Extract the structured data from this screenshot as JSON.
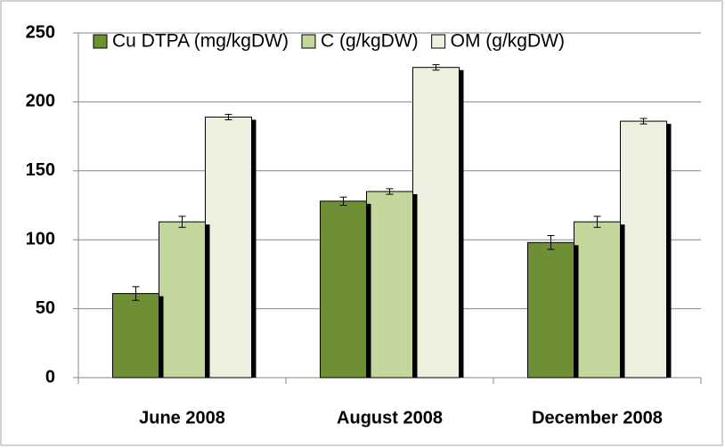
{
  "chart_data": {
    "type": "bar",
    "categories": [
      "June 2008",
      "August 2008",
      "December 2008"
    ],
    "series": [
      {
        "name": "Cu DTPA (mg/kgDW)",
        "color": "#6f8f35",
        "values": [
          61,
          128,
          98
        ],
        "errors": [
          5,
          3,
          5
        ]
      },
      {
        "name": "C (g/kgDW)",
        "color": "#c3d69b",
        "values": [
          113,
          135,
          113
        ],
        "errors": [
          4,
          2,
          4
        ]
      },
      {
        "name": "OM (g/kgDW)",
        "color": "#ebf1de",
        "values": [
          189,
          225,
          186
        ],
        "errors": [
          2,
          2,
          2
        ]
      }
    ],
    "ylim": [
      0,
      250
    ],
    "yticks": [
      0,
      50,
      100,
      150,
      200,
      250
    ],
    "grid": true,
    "legend": "top"
  }
}
